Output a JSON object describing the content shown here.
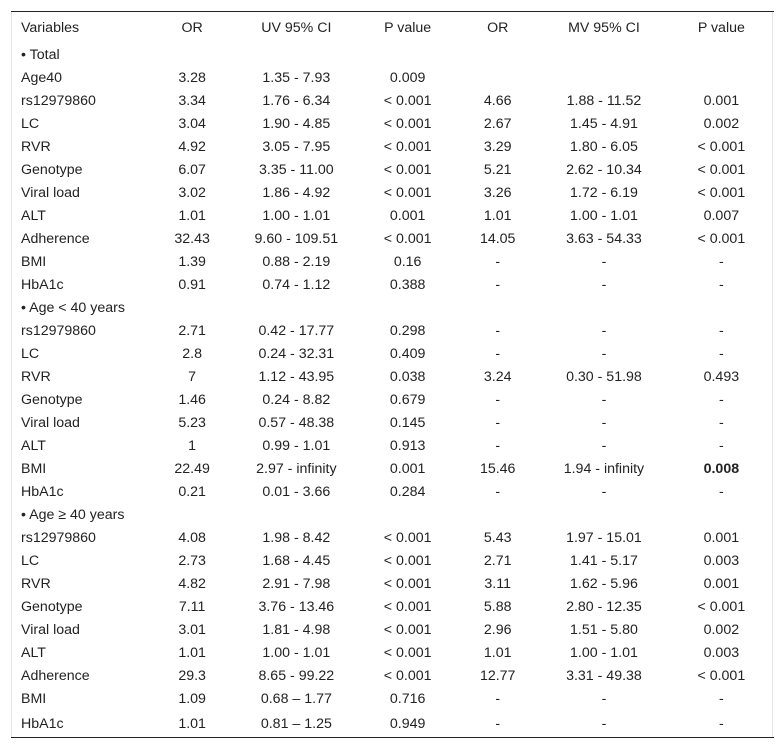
{
  "table": {
    "headers": [
      "Variables",
      "OR",
      "UV 95% CI",
      "P value",
      "OR",
      "MV 95% CI",
      "P value"
    ],
    "sections": [
      {
        "label": "• Total",
        "rows": [
          {
            "variable": "Age40",
            "uv_or": "3.28",
            "uv_ci": "1.35 - 7.93",
            "uv_p": "0.009",
            "mv_or": "",
            "mv_ci": "",
            "mv_p": ""
          },
          {
            "variable": "rs12979860",
            "uv_or": "3.34",
            "uv_ci": "1.76 - 6.34",
            "uv_p": "< 0.001",
            "mv_or": "4.66",
            "mv_ci": "1.88 - 11.52",
            "mv_p": "0.001"
          },
          {
            "variable": "LC",
            "uv_or": "3.04",
            "uv_ci": "1.90 - 4.85",
            "uv_p": "< 0.001",
            "mv_or": "2.67",
            "mv_ci": "1.45 - 4.91",
            "mv_p": "0.002"
          },
          {
            "variable": "RVR",
            "uv_or": "4.92",
            "uv_ci": "3.05 - 7.95",
            "uv_p": "< 0.001",
            "mv_or": "3.29",
            "mv_ci": "1.80 - 6.05",
            "mv_p": "< 0.001"
          },
          {
            "variable": "Genotype",
            "uv_or": "6.07",
            "uv_ci": "3.35 - 11.00",
            "uv_p": "< 0.001",
            "mv_or": "5.21",
            "mv_ci": "2.62 - 10.34",
            "mv_p": "< 0.001"
          },
          {
            "variable": "Viral load",
            "uv_or": "3.02",
            "uv_ci": "1.86 - 4.92",
            "uv_p": "< 0.001",
            "mv_or": "3.26",
            "mv_ci": "1.72 - 6.19",
            "mv_p": "< 0.001"
          },
          {
            "variable": "ALT",
            "uv_or": "1.01",
            "uv_ci": "1.00 - 1.01",
            "uv_p": "0.001",
            "mv_or": "1.01",
            "mv_ci": "1.00 - 1.01",
            "mv_p": "0.007"
          },
          {
            "variable": "Adherence",
            "uv_or": "32.43",
            "uv_ci": "9.60 - 109.51",
            "uv_p": "< 0.001",
            "mv_or": "14.05",
            "mv_ci": "3.63 - 54.33",
            "mv_p": "< 0.001"
          },
          {
            "variable": "BMI",
            "uv_or": "1.39",
            "uv_ci": "0.88 - 2.19",
            "uv_p": "0.16",
            "mv_or": "-",
            "mv_ci": "-",
            "mv_p": "-"
          },
          {
            "variable": "HbA1c",
            "uv_or": "0.91",
            "uv_ci": "0.74 - 1.12",
            "uv_p": "0.388",
            "mv_or": "-",
            "mv_ci": "-",
            "mv_p": "-"
          }
        ]
      },
      {
        "label": "• Age < 40 years",
        "rows": [
          {
            "variable": "rs12979860",
            "uv_or": "2.71",
            "uv_ci": "0.42 - 17.77",
            "uv_p": "0.298",
            "mv_or": "-",
            "mv_ci": "-",
            "mv_p": "-"
          },
          {
            "variable": "LC",
            "uv_or": "2.8",
            "uv_ci": "0.24 - 32.31",
            "uv_p": "0.409",
            "mv_or": "-",
            "mv_ci": "-",
            "mv_p": "-"
          },
          {
            "variable": "RVR",
            "uv_or": "7",
            "uv_ci": "1.12 - 43.95",
            "uv_p": "0.038",
            "mv_or": "3.24",
            "mv_ci": "0.30 - 51.98",
            "mv_p": "0.493"
          },
          {
            "variable": "Genotype",
            "uv_or": "1.46",
            "uv_ci": "0.24 - 8.82",
            "uv_p": "0.679",
            "mv_or": "-",
            "mv_ci": "-",
            "mv_p": "-"
          },
          {
            "variable": "Viral load",
            "uv_or": "5.23",
            "uv_ci": "0.57 - 48.38",
            "uv_p": "0.145",
            "mv_or": "-",
            "mv_ci": "-",
            "mv_p": "-"
          },
          {
            "variable": "ALT",
            "uv_or": "1",
            "uv_ci": "0.99 - 1.01",
            "uv_p": "0.913",
            "mv_or": "-",
            "mv_ci": "-",
            "mv_p": "-"
          },
          {
            "variable": "BMI",
            "uv_or": "22.49",
            "uv_ci": "2.97 - infinity",
            "uv_p": "0.001",
            "mv_or": "15.46",
            "mv_ci": "1.94 - infinity",
            "mv_p": "0.008",
            "mv_p_bold": true
          },
          {
            "variable": "HbA1c",
            "uv_or": "0.21",
            "uv_ci": "0.01 - 3.66",
            "uv_p": "0.284",
            "mv_or": "-",
            "mv_ci": "-",
            "mv_p": "-"
          }
        ]
      },
      {
        "label": "• Age ≥ 40 years",
        "rows": [
          {
            "variable": "rs12979860",
            "uv_or": "4.08",
            "uv_ci": "1.98 - 8.42",
            "uv_p": "< 0.001",
            "mv_or": "5.43",
            "mv_ci": "1.97 - 15.01",
            "mv_p": "0.001"
          },
          {
            "variable": "LC",
            "uv_or": "2.73",
            "uv_ci": "1.68 - 4.45",
            "uv_p": "< 0.001",
            "mv_or": "2.71",
            "mv_ci": "1.41 - 5.17",
            "mv_p": "0.003"
          },
          {
            "variable": "RVR",
            "uv_or": "4.82",
            "uv_ci": "2.91 - 7.98",
            "uv_p": "< 0.001",
            "mv_or": "3.11",
            "mv_ci": "1.62 - 5.96",
            "mv_p": "0.001"
          },
          {
            "variable": "Genotype",
            "uv_or": "7.11",
            "uv_ci": "3.76 - 13.46",
            "uv_p": "< 0.001",
            "mv_or": "5.88",
            "mv_ci": "2.80 - 12.35",
            "mv_p": "< 0.001"
          },
          {
            "variable": "Viral load",
            "uv_or": "3.01",
            "uv_ci": "1.81 - 4.98",
            "uv_p": "< 0.001",
            "mv_or": "2.96",
            "mv_ci": "1.51 - 5.80",
            "mv_p": "0.002"
          },
          {
            "variable": "ALT",
            "uv_or": "1.01",
            "uv_ci": "1.00 - 1.01",
            "uv_p": "< 0.001",
            "mv_or": "1.01",
            "mv_ci": "1.00 - 1.01",
            "mv_p": "0.003"
          },
          {
            "variable": "Adherence",
            "uv_or": "29.3",
            "uv_ci": "8.65 - 99.22",
            "uv_p": "< 0.001",
            "mv_or": "12.77",
            "mv_ci": "3.31 - 49.38",
            "mv_p": "< 0.001"
          },
          {
            "variable": "BMI",
            "uv_or": "1.09",
            "uv_ci": "0.68 – 1.77",
            "uv_p": "0.716",
            "mv_or": "-",
            "mv_ci": "-",
            "mv_p": "-"
          },
          {
            "variable": "HbA1c",
            "uv_or": "1.01",
            "uv_ci": "0.81 – 1.25",
            "uv_p": "0.949",
            "mv_or": "-",
            "mv_ci": "-",
            "mv_p": "-"
          }
        ]
      }
    ]
  }
}
